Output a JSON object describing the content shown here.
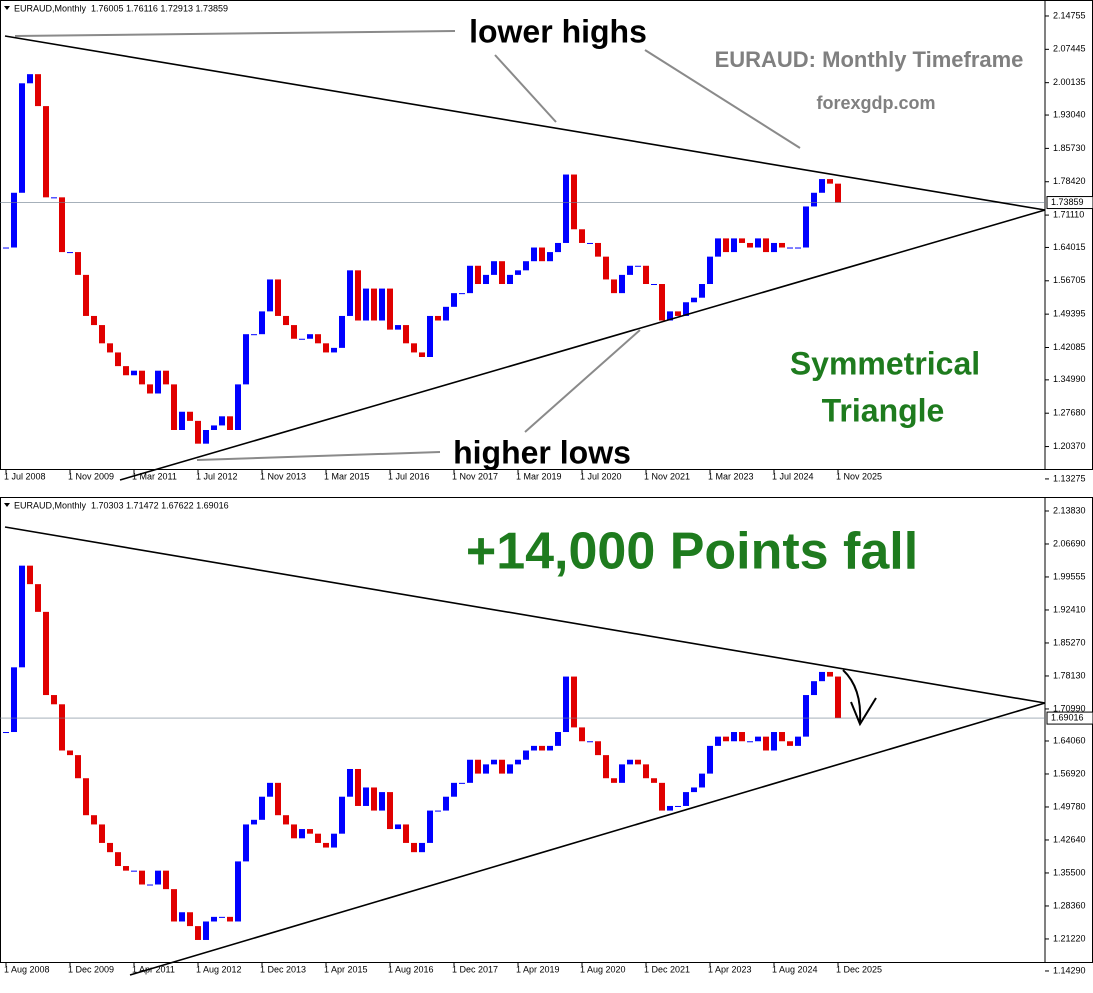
{
  "chart_data": [
    {
      "type": "candlestick",
      "title": "EURAUD,Monthly  1.76005 1.76116 1.72913 1.73859",
      "categories": [
        "1 Jul 2008",
        null,
        null,
        null,
        null,
        null,
        null,
        null,
        "1 Nov 2009",
        null,
        null,
        null,
        null,
        null,
        null,
        null,
        "1 Mar 2011",
        null,
        null,
        null,
        null,
        null,
        null,
        null,
        "1 Jul 2012",
        null,
        null,
        null,
        null,
        null,
        null,
        null,
        "1 Nov 2013",
        null,
        null,
        null,
        null,
        null,
        null,
        null,
        "1 Mar 2015",
        null,
        null,
        null,
        null,
        null,
        null,
        null,
        "1 Jul 2016",
        null,
        null,
        null,
        null,
        null,
        null,
        null,
        "1 Nov 2017",
        null,
        null,
        null,
        null,
        null,
        null,
        null,
        "1 Mar 2019",
        null,
        null,
        null,
        null,
        null,
        null,
        null,
        "1 Jul 2020",
        null,
        null,
        null,
        null,
        null,
        null,
        null,
        "1 Nov 2021",
        null,
        null,
        null,
        null,
        null,
        null,
        null,
        "1 Mar 2023",
        null,
        null,
        null,
        null,
        null,
        null,
        null,
        "1 Jul 2024",
        null,
        null,
        null,
        null,
        null,
        null,
        null,
        "1 Nov 2025"
      ],
      "values": [
        1.64,
        1.76,
        2.0,
        2.02,
        1.95,
        1.75,
        1.75,
        1.63,
        1.63,
        1.58,
        1.49,
        1.47,
        1.43,
        1.41,
        1.38,
        1.36,
        1.37,
        1.34,
        1.32,
        1.37,
        1.34,
        1.24,
        1.28,
        1.26,
        1.21,
        1.24,
        1.25,
        1.27,
        1.24,
        1.34,
        1.45,
        1.45,
        1.5,
        1.57,
        1.49,
        1.47,
        1.44,
        1.44,
        1.45,
        1.43,
        1.41,
        1.42,
        1.49,
        1.59,
        1.48,
        1.55,
        1.48,
        1.55,
        1.46,
        1.47,
        1.43,
        1.41,
        1.4,
        1.49,
        1.48,
        1.51,
        1.54,
        1.54,
        1.6,
        1.56,
        1.58,
        1.61,
        1.56,
        1.58,
        1.59,
        1.61,
        1.64,
        1.61,
        1.63,
        1.65,
        1.8,
        1.68,
        1.65,
        1.65,
        1.62,
        1.57,
        1.54,
        1.58,
        1.6,
        1.6,
        1.56,
        1.56,
        1.48,
        1.5,
        1.49,
        1.52,
        1.53,
        1.56,
        1.62,
        1.66,
        1.63,
        1.66,
        1.65,
        1.64,
        1.66,
        1.63,
        1.65,
        1.64,
        1.64,
        1.64,
        1.73,
        1.76,
        1.79,
        1.78,
        1.73859
      ],
      "up_color": "#0000ff",
      "down_color": "#e00000",
      "ylim": [
        1.126,
        2.176
      ],
      "yticks": [
        2.14755,
        2.07445,
        2.00135,
        {
          "value": 1.9304,
          "label": "1.93040"
        },
        {
          "value": 1.8573,
          "label": "1.85730"
        },
        {
          "value": 1.7842,
          "label": "1.78420"
        },
        {
          "value": 1.7111,
          "label": "1.71110"
        },
        1.64015,
        1.56705,
        1.49395,
        1.42085,
        {
          "value": 1.3499,
          "label": "1.34990"
        },
        {
          "value": 1.2768,
          "label": "1.27680"
        },
        {
          "value": 1.2037,
          "label": "1.20370"
        },
        1.13275
      ],
      "last_price": 1.73859,
      "annotations": [
        "lower highs",
        "EURAUD: Monthly Timeframe",
        "forexgdp.com",
        "Symmetrical",
        "Triangle",
        "higher lows"
      ]
    },
    {
      "type": "candlestick",
      "title": "EURAUD,Monthly  1.70303 1.71472 1.67622 1.69016",
      "categories": [
        "1 Aug 2008",
        null,
        null,
        null,
        null,
        null,
        null,
        null,
        "1 Dec 2009",
        null,
        null,
        null,
        null,
        null,
        null,
        null,
        "1 Apr 2011",
        null,
        null,
        null,
        null,
        null,
        null,
        null,
        "1 Aug 2012",
        null,
        null,
        null,
        null,
        null,
        null,
        null,
        "1 Dec 2013",
        null,
        null,
        null,
        null,
        null,
        null,
        null,
        "1 Apr 2015",
        null,
        null,
        null,
        null,
        null,
        null,
        null,
        "1 Aug 2016",
        null,
        null,
        null,
        null,
        null,
        null,
        null,
        "1 Dec 2017",
        null,
        null,
        null,
        null,
        null,
        null,
        null,
        "1 Apr 2019",
        null,
        null,
        null,
        null,
        null,
        null,
        null,
        "1 Aug 2020",
        null,
        null,
        null,
        null,
        null,
        null,
        null,
        "1 Dec 2021",
        null,
        null,
        null,
        null,
        null,
        null,
        null,
        "1 Apr 2023",
        null,
        null,
        null,
        null,
        null,
        null,
        null,
        "1 Aug 2024",
        null,
        null,
        null,
        null,
        null,
        null,
        null,
        "1 Dec 2025"
      ],
      "values": [
        1.66,
        1.8,
        2.02,
        1.98,
        1.92,
        1.74,
        1.72,
        1.62,
        1.61,
        1.56,
        1.48,
        1.46,
        1.42,
        1.4,
        1.37,
        1.36,
        1.36,
        1.33,
        1.33,
        1.36,
        1.32,
        1.25,
        1.27,
        1.24,
        1.21,
        1.25,
        1.26,
        1.26,
        1.25,
        1.38,
        1.46,
        1.47,
        1.52,
        1.55,
        1.48,
        1.46,
        1.43,
        1.45,
        1.44,
        1.42,
        1.41,
        1.44,
        1.52,
        1.58,
        1.5,
        1.54,
        1.49,
        1.53,
        1.45,
        1.46,
        1.42,
        1.4,
        1.42,
        1.49,
        1.49,
        1.52,
        1.55,
        1.55,
        1.6,
        1.57,
        1.59,
        1.6,
        1.57,
        1.59,
        1.6,
        1.62,
        1.63,
        1.62,
        1.63,
        1.66,
        1.78,
        1.67,
        1.64,
        1.64,
        1.61,
        1.56,
        1.55,
        1.59,
        1.6,
        1.59,
        1.56,
        1.55,
        1.49,
        1.5,
        1.5,
        1.53,
        1.54,
        1.57,
        1.63,
        1.65,
        1.64,
        1.66,
        1.64,
        1.64,
        1.65,
        1.62,
        1.66,
        1.64,
        1.63,
        1.65,
        1.74,
        1.77,
        1.79,
        1.78,
        1.69016
      ],
      "up_color": "#0000ff",
      "down_color": "#e00000",
      "ylim": [
        1.1342,
        2.1664
      ],
      "yticks": [
        {
          "value": 2.1383,
          "label": "2.13830"
        },
        {
          "value": 2.0669,
          "label": "2.06690"
        },
        1.99555,
        {
          "value": 1.9241,
          "label": "1.92410"
        },
        {
          "value": 1.8527,
          "label": "1.85270"
        },
        {
          "value": 1.7813,
          "label": "1.78130"
        },
        {
          "value": 1.7099,
          "label": "1.70990"
        },
        {
          "value": 1.6406,
          "label": "1.64060"
        },
        {
          "value": 1.5692,
          "label": "1.56920"
        },
        {
          "value": 1.4978,
          "label": "1.49780"
        },
        {
          "value": 1.4264,
          "label": "1.42640"
        },
        {
          "value": 1.355,
          "label": "1.35500"
        },
        {
          "value": 1.2836,
          "label": "1.28360"
        },
        {
          "value": 1.2122,
          "label": "1.21220"
        },
        {
          "value": 1.1429,
          "label": "1.14290"
        }
      ],
      "last_price": 1.69016,
      "annotations": [
        "+14,000 Points fall"
      ]
    }
  ]
}
